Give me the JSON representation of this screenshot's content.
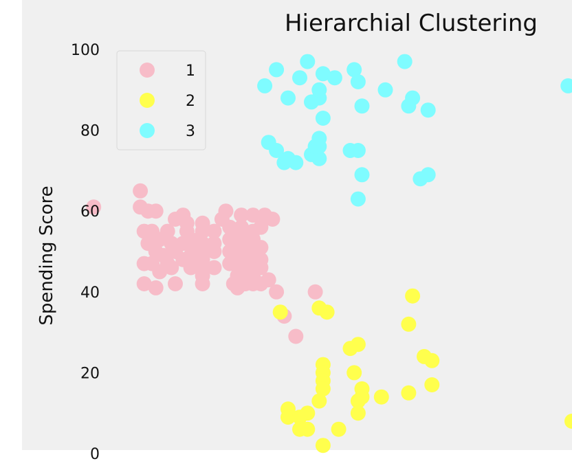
{
  "chart_data": {
    "type": "scatter",
    "title": "Hierarchial Clustering",
    "xlabel": "",
    "ylabel": "Spending Score",
    "ylim": [
      0,
      100
    ],
    "xlim": [
      0,
      140
    ],
    "yticks": [
      0,
      20,
      40,
      60,
      80,
      100
    ],
    "grid": false,
    "legend_position": "top-left",
    "background_color": "#f0f0f0",
    "series": [
      {
        "name": "1",
        "color": "#f7bcc8",
        "points": [
          [
            17,
            61
          ],
          [
            29,
            65
          ],
          [
            29,
            61
          ],
          [
            31,
            60
          ],
          [
            33,
            60
          ],
          [
            32,
            55
          ],
          [
            30,
            55
          ],
          [
            34,
            53
          ],
          [
            31,
            52
          ],
          [
            33,
            50
          ],
          [
            35,
            49
          ],
          [
            32,
            47
          ],
          [
            30,
            47
          ],
          [
            34,
            45
          ],
          [
            36,
            47
          ],
          [
            37,
            46
          ],
          [
            38,
            50
          ],
          [
            37,
            52
          ],
          [
            36,
            55
          ],
          [
            38,
            58
          ],
          [
            40,
            59
          ],
          [
            41,
            57
          ],
          [
            41,
            55
          ],
          [
            42,
            53
          ],
          [
            40,
            52
          ],
          [
            43,
            51
          ],
          [
            42,
            49
          ],
          [
            40,
            48
          ],
          [
            42,
            46
          ],
          [
            43,
            49
          ],
          [
            30,
            42
          ],
          [
            33,
            41
          ],
          [
            38,
            42
          ],
          [
            45,
            57
          ],
          [
            45,
            55
          ],
          [
            45,
            52
          ],
          [
            45,
            50
          ],
          [
            45,
            48
          ],
          [
            45,
            46
          ],
          [
            45,
            44
          ],
          [
            45,
            42
          ],
          [
            48,
            55
          ],
          [
            48,
            52
          ],
          [
            48,
            50
          ],
          [
            48,
            46
          ],
          [
            50,
            58
          ],
          [
            51,
            60
          ],
          [
            52,
            56
          ],
          [
            52,
            53
          ],
          [
            52,
            50
          ],
          [
            52,
            47
          ],
          [
            53,
            42
          ],
          [
            54,
            41
          ],
          [
            54,
            44
          ],
          [
            54,
            47
          ],
          [
            54,
            50
          ],
          [
            54,
            53
          ],
          [
            54,
            55
          ],
          [
            55,
            59
          ],
          [
            55,
            56
          ],
          [
            56,
            53
          ],
          [
            56,
            50
          ],
          [
            56,
            48
          ],
          [
            56,
            45
          ],
          [
            56,
            42
          ],
          [
            58,
            42
          ],
          [
            58,
            44
          ],
          [
            58,
            46
          ],
          [
            58,
            50
          ],
          [
            58,
            53
          ],
          [
            58,
            55
          ],
          [
            58,
            59
          ],
          [
            57,
            48
          ],
          [
            57,
            51
          ],
          [
            59,
            47
          ],
          [
            59,
            49
          ],
          [
            60,
            51
          ],
          [
            60,
            48
          ],
          [
            60,
            46
          ],
          [
            60,
            42
          ],
          [
            60,
            56
          ],
          [
            61,
            59
          ],
          [
            63,
            58
          ],
          [
            62,
            43
          ],
          [
            64,
            40
          ],
          [
            66,
            34
          ],
          [
            69,
            29
          ],
          [
            74,
            40
          ]
        ]
      },
      {
        "name": "2",
        "color": "#ffff4d",
        "points": [
          [
            65,
            35
          ],
          [
            75,
            36
          ],
          [
            77,
            35
          ],
          [
            76,
            22
          ],
          [
            76,
            20
          ],
          [
            76,
            18
          ],
          [
            76,
            16
          ],
          [
            75,
            13
          ],
          [
            76,
            2
          ],
          [
            67,
            11
          ],
          [
            67,
            9
          ],
          [
            70,
            9
          ],
          [
            70,
            6
          ],
          [
            72,
            10
          ],
          [
            72,
            6
          ],
          [
            80,
            6
          ],
          [
            83,
            26
          ],
          [
            85,
            27
          ],
          [
            84,
            20
          ],
          [
            86,
            16
          ],
          [
            86,
            14
          ],
          [
            85,
            13
          ],
          [
            85,
            10
          ],
          [
            91,
            14
          ],
          [
            98,
            32
          ],
          [
            99,
            39
          ],
          [
            98,
            15
          ],
          [
            102,
            24
          ],
          [
            104,
            23
          ],
          [
            104,
            17
          ],
          [
            140,
            8
          ]
        ]
      },
      {
        "name": "3",
        "color": "#7ffcff",
        "points": [
          [
            61,
            91
          ],
          [
            64,
            95
          ],
          [
            67,
            88
          ],
          [
            70,
            93
          ],
          [
            72,
            97
          ],
          [
            73,
            87
          ],
          [
            75,
            88
          ],
          [
            75,
            90
          ],
          [
            76,
            94
          ],
          [
            79,
            93
          ],
          [
            76,
            83
          ],
          [
            84,
            95
          ],
          [
            85,
            92
          ],
          [
            86,
            86
          ],
          [
            92,
            90
          ],
          [
            97,
            97
          ],
          [
            99,
            88
          ],
          [
            98,
            86
          ],
          [
            103,
            85
          ],
          [
            139,
            91
          ],
          [
            62,
            77
          ],
          [
            64,
            75
          ],
          [
            66,
            72
          ],
          [
            67,
            73
          ],
          [
            69,
            72
          ],
          [
            73,
            74
          ],
          [
            74,
            76
          ],
          [
            75,
            73
          ],
          [
            75,
            76
          ],
          [
            75,
            78
          ],
          [
            83,
            75
          ],
          [
            85,
            75
          ],
          [
            86,
            69
          ],
          [
            85,
            63
          ],
          [
            101,
            68
          ],
          [
            103,
            69
          ]
        ]
      }
    ]
  }
}
